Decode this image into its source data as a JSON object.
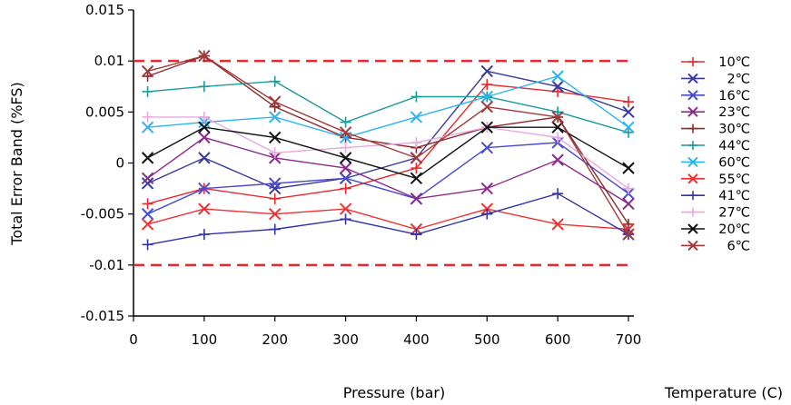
{
  "chart_data": {
    "type": "line",
    "xlabel": "Pressure (bar)",
    "ylabel": "Total Error Band (%FS)",
    "legend_title": "Temperature (C)",
    "legend_position": "right",
    "x": [
      20,
      100,
      200,
      300,
      400,
      500,
      600,
      700
    ],
    "xticks": [
      0,
      100,
      200,
      300,
      400,
      500,
      600,
      700
    ],
    "xtick_labels": [
      "0",
      "100",
      "200",
      "300",
      "400",
      "500",
      "600",
      "700"
    ],
    "yticks": [
      0.015,
      0.01,
      0.005,
      0,
      -0.005,
      -0.01,
      -0.015
    ],
    "ytick_labels": [
      "0.015",
      "0.01",
      "0.005",
      "0",
      "-0.005",
      "-0.01",
      "-0.015"
    ],
    "xlim": [
      0,
      700
    ],
    "ylim": [
      -0.015,
      0.015
    ],
    "grid": false,
    "limit_lines": [
      0.01,
      -0.01
    ],
    "limit_color": "#e8282c",
    "series": [
      {
        "name": "10℃",
        "color": "#e8282c",
        "marker": "+",
        "values": [
          -0.004,
          -0.0025,
          -0.0035,
          -0.0025,
          -0.0005,
          0.0077,
          0.007,
          0.006
        ]
      },
      {
        "name": "2℃",
        "color": "#3a3a9e",
        "marker": "x",
        "values": [
          -0.002,
          0.0005,
          -0.0025,
          -0.0015,
          0.0005,
          0.009,
          0.0075,
          0.005
        ]
      },
      {
        "name": "16℃",
        "color": "#4a4ad0",
        "marker": "x",
        "values": [
          -0.005,
          -0.0025,
          -0.002,
          -0.0015,
          -0.0035,
          0.0015,
          0.002,
          -0.003
        ]
      },
      {
        "name": "23℃",
        "color": "#8a2a8c",
        "marker": "x",
        "values": [
          -0.0015,
          0.0025,
          0.0005,
          -0.0005,
          -0.0035,
          -0.0025,
          0.0003,
          -0.004
        ]
      },
      {
        "name": "30℃",
        "color": "#8b2b2b",
        "marker": "+",
        "values": [
          0.0085,
          0.0105,
          0.0055,
          0.0025,
          0.0015,
          0.0035,
          0.0045,
          -0.006
        ]
      },
      {
        "name": "44℃",
        "color": "#1a9a9a",
        "marker": "+",
        "values": [
          0.007,
          0.0075,
          0.008,
          0.004,
          0.0065,
          0.0065,
          0.005,
          0.003
        ]
      },
      {
        "name": "60℃",
        "color": "#2ab4f0",
        "marker": "x",
        "values": [
          0.0035,
          0.004,
          0.0045,
          0.0025,
          0.0045,
          0.0065,
          0.0085,
          0.0035
        ]
      },
      {
        "name": "55℃",
        "color": "#f03030",
        "marker": "x",
        "values": [
          -0.006,
          -0.0045,
          -0.005,
          -0.0045,
          -0.0065,
          -0.0045,
          -0.006,
          -0.0065
        ]
      },
      {
        "name": "41℃",
        "color": "#3232a8",
        "marker": "+",
        "values": [
          -0.008,
          -0.007,
          -0.0065,
          -0.0055,
          -0.007,
          -0.005,
          -0.003,
          -0.007
        ]
      },
      {
        "name": "27℃",
        "color": "#e8a8e0",
        "marker": "+",
        "values": [
          0.0045,
          0.0045,
          0.001,
          0.0015,
          0.002,
          0.0035,
          0.0025,
          -0.0025
        ]
      },
      {
        "name": "20℃",
        "color": "#111111",
        "marker": "x",
        "values": [
          0.0005,
          0.0035,
          0.0025,
          0.0005,
          -0.0015,
          0.0035,
          0.0035,
          -0.0005
        ]
      },
      {
        "name": "6℃",
        "color": "#a03a3a",
        "marker": "x",
        "values": [
          0.009,
          0.0105,
          0.006,
          0.003,
          0.0005,
          0.0055,
          0.0045,
          -0.007
        ]
      }
    ]
  }
}
